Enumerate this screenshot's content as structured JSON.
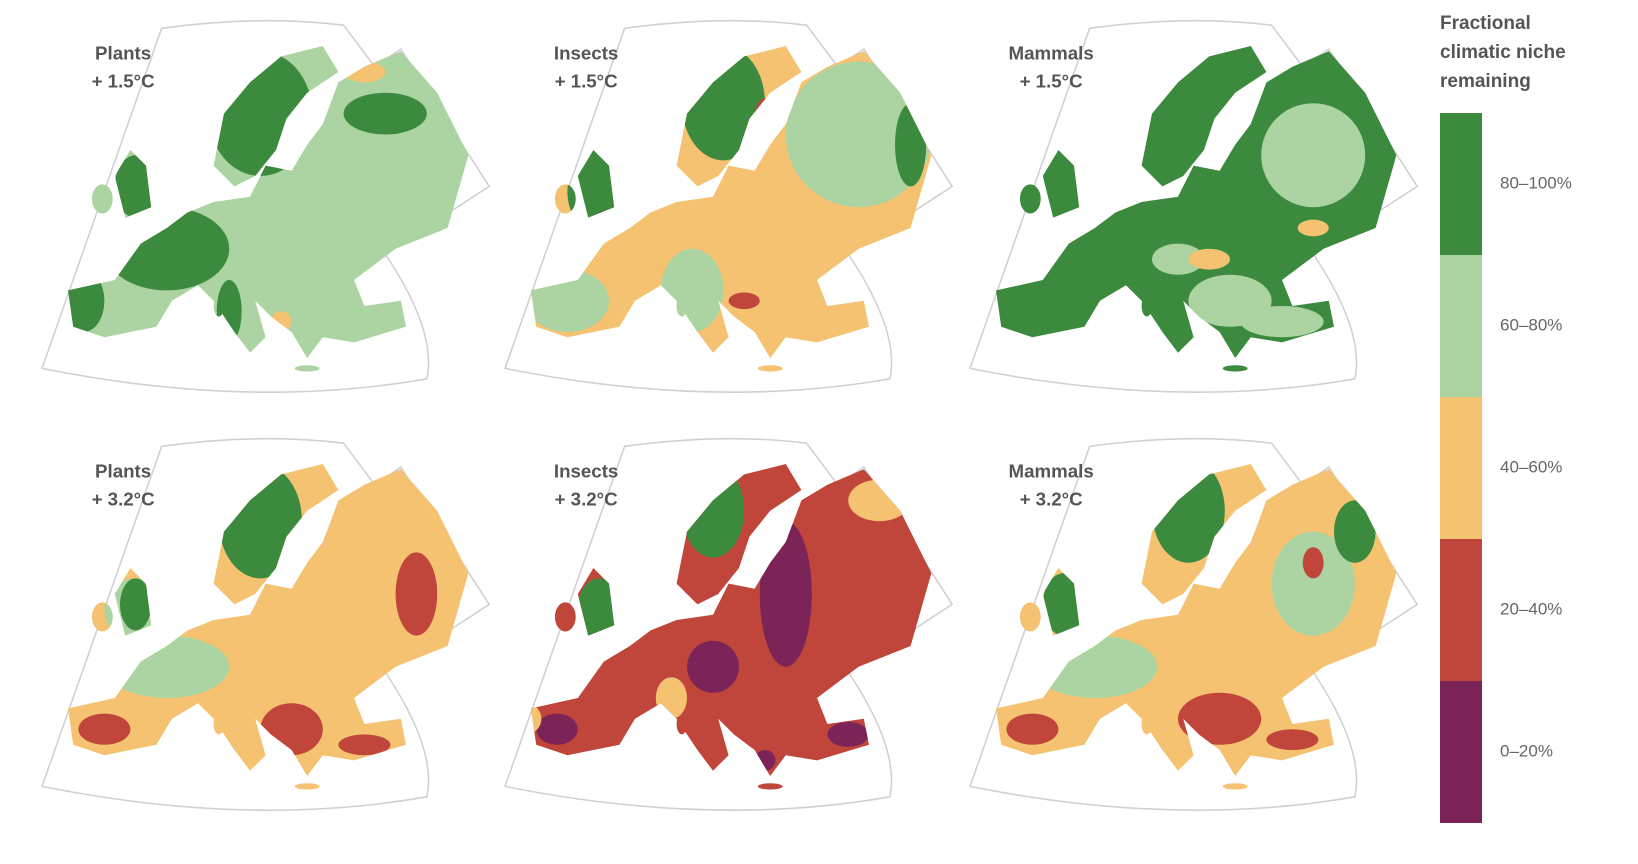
{
  "legend": {
    "title_lines": [
      "Fractional",
      "climatic niche",
      "remaining"
    ],
    "items": [
      {
        "label": "80–100%",
        "color": "#3b8a3e"
      },
      {
        "label": "60–80%",
        "color": "#abd4a2"
      },
      {
        "label": "40–60%",
        "color": "#f5c272"
      },
      {
        "label": "20–40%",
        "color": "#c0463b"
      },
      {
        "label": "0–20%",
        "color": "#7c2457"
      }
    ]
  },
  "panels": [
    {
      "taxon": "Plants",
      "warming": "+ 1.5°C"
    },
    {
      "taxon": "Insects",
      "warming": "+ 1.5°C"
    },
    {
      "taxon": "Mammals",
      "warming": "+ 1.5°C"
    },
    {
      "taxon": "Plants",
      "warming": "+ 3.2°C"
    },
    {
      "taxon": "Insects",
      "warming": "+ 3.2°C"
    },
    {
      "taxon": "Mammals",
      "warming": "+ 3.2°C"
    }
  ]
}
